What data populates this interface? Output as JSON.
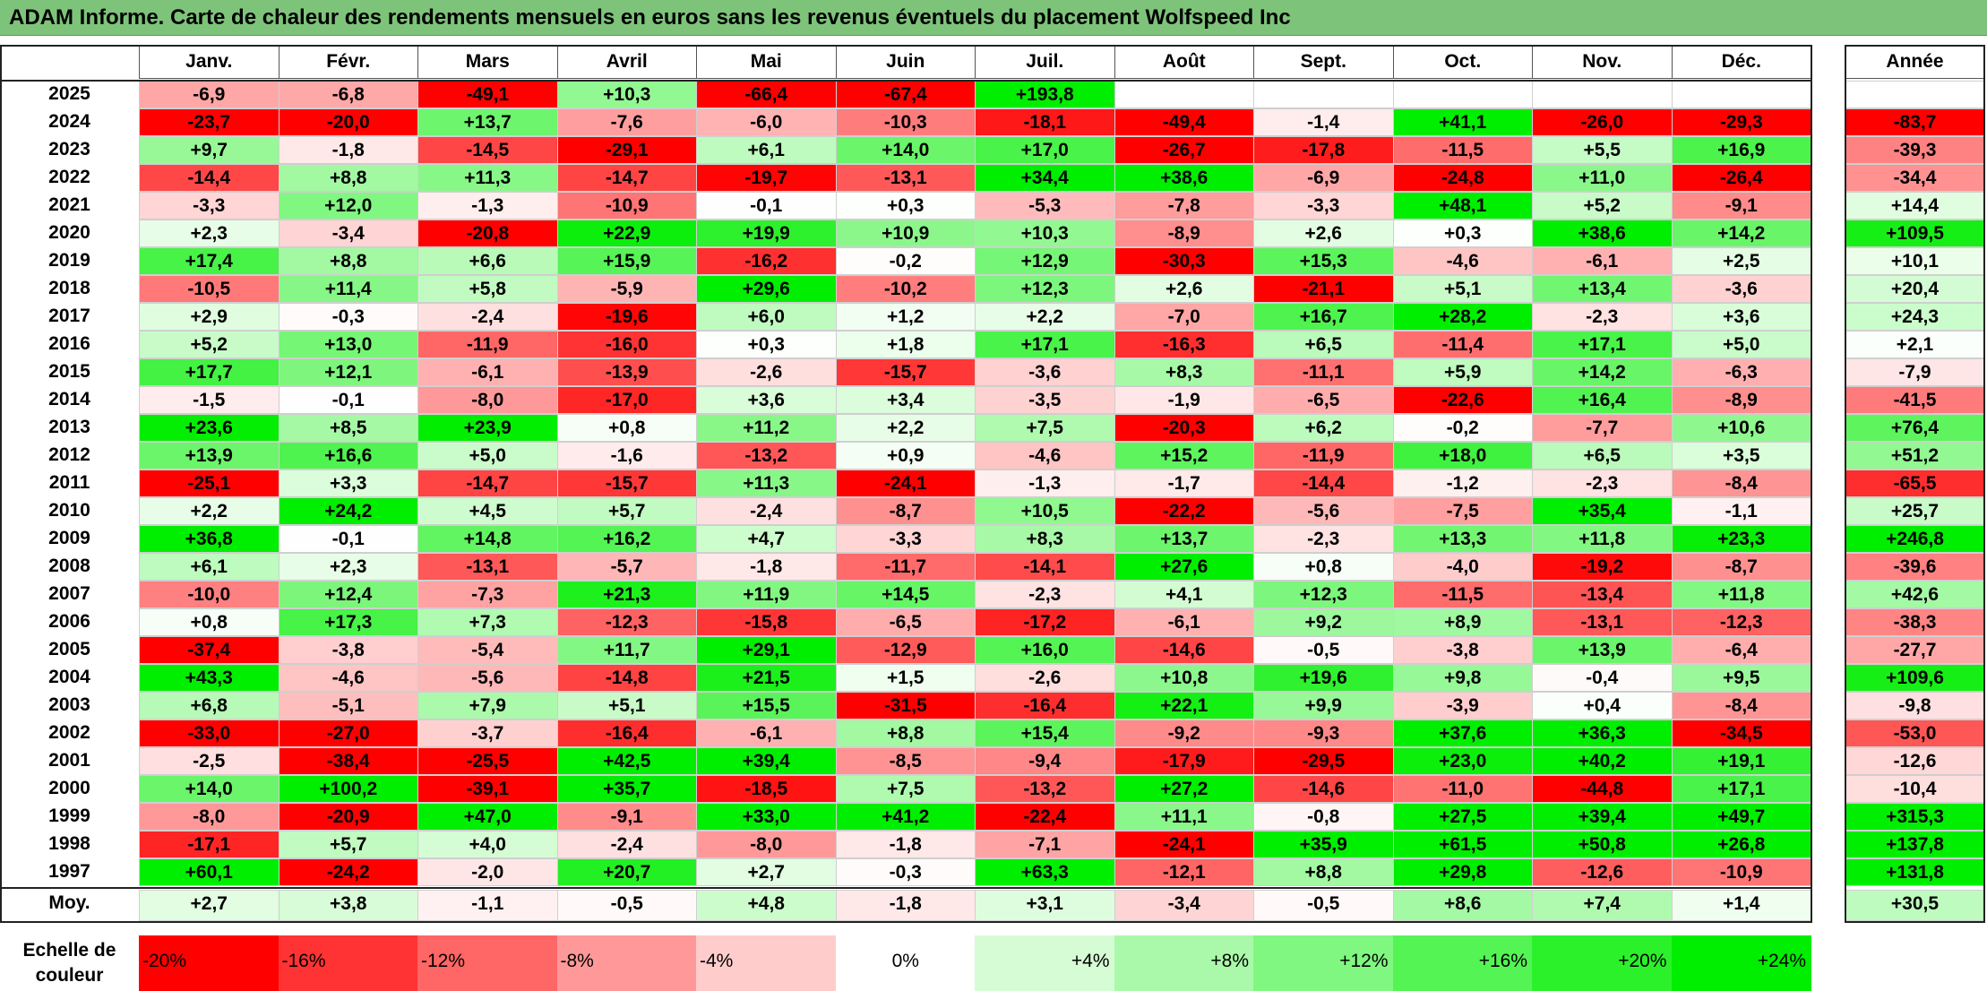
{
  "title": "ADAM Informe. Carte de chaleur des rendements mensuels en euros sans les revenus éventuels du placement Wolfspeed Inc",
  "chart_data": {
    "type": "heatmap",
    "columns": [
      "Janv.",
      "Févr.",
      "Mars",
      "Avril",
      "Mai",
      "Juin",
      "Juil.",
      "Août",
      "Sept.",
      "Oct.",
      "Nov.",
      "Déc."
    ],
    "year_header": "Année",
    "rows": [
      {
        "label": "2025",
        "cells": [
          "-6,9",
          "-6,8",
          "-49,1",
          "+10,3",
          "-66,4",
          "-67,4",
          "+193,8",
          "",
          "",
          "",
          "",
          ""
        ],
        "year": ""
      },
      {
        "label": "2024",
        "cells": [
          "-23,7",
          "-20,0",
          "+13,7",
          "-7,6",
          "-6,0",
          "-10,3",
          "-18,1",
          "-49,4",
          "-1,4",
          "+41,1",
          "-26,0",
          "-29,3"
        ],
        "year": "-83,7"
      },
      {
        "label": "2023",
        "cells": [
          "+9,7",
          "-1,8",
          "-14,5",
          "-29,1",
          "+6,1",
          "+14,0",
          "+17,0",
          "-26,7",
          "-17,8",
          "-11,5",
          "+5,5",
          "+16,9"
        ],
        "year": "-39,3"
      },
      {
        "label": "2022",
        "cells": [
          "-14,4",
          "+8,8",
          "+11,3",
          "-14,7",
          "-19,7",
          "-13,1",
          "+34,4",
          "+38,6",
          "-6,9",
          "-24,8",
          "+11,0",
          "-26,4"
        ],
        "year": "-34,4"
      },
      {
        "label": "2021",
        "cells": [
          "-3,3",
          "+12,0",
          "-1,3",
          "-10,9",
          "-0,1",
          "+0,3",
          "-5,3",
          "-7,8",
          "-3,3",
          "+48,1",
          "+5,2",
          "-9,1"
        ],
        "year": "+14,4"
      },
      {
        "label": "2020",
        "cells": [
          "+2,3",
          "-3,4",
          "-20,8",
          "+22,9",
          "+19,9",
          "+10,9",
          "+10,3",
          "-8,9",
          "+2,6",
          "+0,3",
          "+38,6",
          "+14,2"
        ],
        "year": "+109,5"
      },
      {
        "label": "2019",
        "cells": [
          "+17,4",
          "+8,8",
          "+6,6",
          "+15,9",
          "-16,2",
          "-0,2",
          "+12,9",
          "-30,3",
          "+15,3",
          "-4,6",
          "-6,1",
          "+2,5"
        ],
        "year": "+10,1"
      },
      {
        "label": "2018",
        "cells": [
          "-10,5",
          "+11,4",
          "+5,8",
          "-5,9",
          "+29,6",
          "-10,2",
          "+12,3",
          "+2,6",
          "-21,1",
          "+5,1",
          "+13,4",
          "-3,6"
        ],
        "year": "+20,4"
      },
      {
        "label": "2017",
        "cells": [
          "+2,9",
          "-0,3",
          "-2,4",
          "-19,6",
          "+6,0",
          "+1,2",
          "+2,2",
          "-7,0",
          "+16,7",
          "+28,2",
          "-2,3",
          "+3,6"
        ],
        "year": "+24,3"
      },
      {
        "label": "2016",
        "cells": [
          "+5,2",
          "+13,0",
          "-11,9",
          "-16,0",
          "+0,3",
          "+1,8",
          "+17,1",
          "-16,3",
          "+6,5",
          "-11,4",
          "+17,1",
          "+5,0"
        ],
        "year": "+2,1"
      },
      {
        "label": "2015",
        "cells": [
          "+17,7",
          "+12,1",
          "-6,1",
          "-13,9",
          "-2,6",
          "-15,7",
          "-3,6",
          "+8,3",
          "-11,1",
          "+5,9",
          "+14,2",
          "-6,3"
        ],
        "year": "-7,9"
      },
      {
        "label": "2014",
        "cells": [
          "-1,5",
          "-0,1",
          "-8,0",
          "-17,0",
          "+3,6",
          "+3,4",
          "-3,5",
          "-1,9",
          "-6,5",
          "-22,6",
          "+16,4",
          "-8,9"
        ],
        "year": "-41,5"
      },
      {
        "label": "2013",
        "cells": [
          "+23,6",
          "+8,5",
          "+23,9",
          "+0,8",
          "+11,2",
          "+2,2",
          "+7,5",
          "-20,3",
          "+6,2",
          "-0,2",
          "-7,7",
          "+10,6"
        ],
        "year": "+76,4"
      },
      {
        "label": "2012",
        "cells": [
          "+13,9",
          "+16,6",
          "+5,0",
          "-1,6",
          "-13,2",
          "+0,9",
          "-4,6",
          "+15,2",
          "-11,9",
          "+18,0",
          "+6,5",
          "+3,5"
        ],
        "year": "+51,2"
      },
      {
        "label": "2011",
        "cells": [
          "-25,1",
          "+3,3",
          "-14,7",
          "-15,7",
          "+11,3",
          "-24,1",
          "-1,3",
          "-1,7",
          "-14,4",
          "-1,2",
          "-2,3",
          "-8,4"
        ],
        "year": "-65,5"
      },
      {
        "label": "2010",
        "cells": [
          "+2,2",
          "+24,2",
          "+4,5",
          "+5,7",
          "-2,4",
          "-8,7",
          "+10,5",
          "-22,2",
          "-5,6",
          "-7,5",
          "+35,4",
          "-1,1"
        ],
        "year": "+25,7"
      },
      {
        "label": "2009",
        "cells": [
          "+36,8",
          "-0,1",
          "+14,8",
          "+16,2",
          "+4,7",
          "-3,3",
          "+8,3",
          "+13,7",
          "-2,3",
          "+13,3",
          "+11,8",
          "+23,3"
        ],
        "year": "+246,8"
      },
      {
        "label": "2008",
        "cells": [
          "+6,1",
          "+2,3",
          "-13,1",
          "-5,7",
          "-1,8",
          "-11,7",
          "-14,1",
          "+27,6",
          "+0,8",
          "-4,0",
          "-19,2",
          "-8,7"
        ],
        "year": "-39,6"
      },
      {
        "label": "2007",
        "cells": [
          "-10,0",
          "+12,4",
          "-7,3",
          "+21,3",
          "+11,9",
          "+14,5",
          "-2,3",
          "+4,1",
          "+12,3",
          "-11,5",
          "-13,4",
          "+11,8"
        ],
        "year": "+42,6"
      },
      {
        "label": "2006",
        "cells": [
          "+0,8",
          "+17,3",
          "+7,3",
          "-12,3",
          "-15,8",
          "-6,5",
          "-17,2",
          "-6,1",
          "+9,2",
          "+8,9",
          "-13,1",
          "-12,3"
        ],
        "year": "-38,3"
      },
      {
        "label": "2005",
        "cells": [
          "-37,4",
          "-3,8",
          "-5,4",
          "+11,7",
          "+29,1",
          "-12,9",
          "+16,0",
          "-14,6",
          "-0,5",
          "-3,8",
          "+13,9",
          "-6,4"
        ],
        "year": "-27,7"
      },
      {
        "label": "2004",
        "cells": [
          "+43,3",
          "-4,6",
          "-5,6",
          "-14,8",
          "+21,5",
          "+1,5",
          "-2,6",
          "+10,8",
          "+19,6",
          "+9,8",
          "-0,4",
          "+9,5"
        ],
        "year": "+109,6"
      },
      {
        "label": "2003",
        "cells": [
          "+6,8",
          "-5,1",
          "+7,9",
          "+5,1",
          "+15,5",
          "-31,5",
          "-16,4",
          "+22,1",
          "+9,9",
          "-3,9",
          "+0,4",
          "-8,4"
        ],
        "year": "-9,8"
      },
      {
        "label": "2002",
        "cells": [
          "-33,0",
          "-27,0",
          "-3,7",
          "-16,4",
          "-6,1",
          "+8,8",
          "+15,4",
          "-9,2",
          "-9,3",
          "+37,6",
          "+36,3",
          "-34,5"
        ],
        "year": "-53,0"
      },
      {
        "label": "2001",
        "cells": [
          "-2,5",
          "-38,4",
          "-25,5",
          "+42,5",
          "+39,4",
          "-8,5",
          "-9,4",
          "-17,9",
          "-29,5",
          "+23,0",
          "+40,2",
          "+19,1"
        ],
        "year": "-12,6"
      },
      {
        "label": "2000",
        "cells": [
          "+14,0",
          "+100,2",
          "-39,1",
          "+35,7",
          "-18,5",
          "+7,5",
          "-13,2",
          "+27,2",
          "-14,6",
          "-11,0",
          "-44,8",
          "+17,1"
        ],
        "year": "-10,4"
      },
      {
        "label": "1999",
        "cells": [
          "-8,0",
          "-20,9",
          "+47,0",
          "-9,1",
          "+33,0",
          "+41,2",
          "-22,4",
          "+11,1",
          "-0,8",
          "+27,5",
          "+39,4",
          "+49,7"
        ],
        "year": "+315,3"
      },
      {
        "label": "1998",
        "cells": [
          "-17,1",
          "+5,7",
          "+4,0",
          "-2,4",
          "-8,0",
          "-1,8",
          "-7,1",
          "-24,1",
          "+35,9",
          "+61,5",
          "+50,8",
          "+26,8"
        ],
        "year": "+137,8"
      },
      {
        "label": "1997",
        "cells": [
          "+60,1",
          "-24,2",
          "-2,0",
          "+20,7",
          "+2,7",
          "-0,3",
          "+63,3",
          "-12,1",
          "+8,8",
          "+29,8",
          "-12,6",
          "-10,9"
        ],
        "year": "+131,8"
      }
    ],
    "average": {
      "label": "Moy.",
      "cells": [
        "+2,7",
        "+3,8",
        "-1,1",
        "-0,5",
        "+4,8",
        "-1,8",
        "+3,1",
        "-3,4",
        "-0,5",
        "+8,6",
        "+7,4",
        "+1,4"
      ],
      "year": "+30,5"
    },
    "scale": {
      "label": "Echelle de couleur",
      "items": [
        {
          "text": "-20%",
          "value": -20
        },
        {
          "text": "-16%",
          "value": -16
        },
        {
          "text": "-12%",
          "value": -12
        },
        {
          "text": "-8%",
          "value": -8
        },
        {
          "text": "-4%",
          "value": -4
        },
        {
          "text": "0%",
          "value": 0
        },
        {
          "text": "+4%",
          "value": 4
        },
        {
          "text": "+8%",
          "value": 8
        },
        {
          "text": "+12%",
          "value": 12
        },
        {
          "text": "+16%",
          "value": 16
        },
        {
          "text": "+20%",
          "value": 20
        },
        {
          "text": "+24%",
          "value": 24
        }
      ]
    },
    "colors": {
      "negative_max": "#ff0000",
      "neutral": "#ffffff",
      "positive_max": "#00ee00"
    },
    "color_range_monthly": [
      -20,
      24
    ],
    "color_range_year": [
      -80,
      120
    ]
  }
}
